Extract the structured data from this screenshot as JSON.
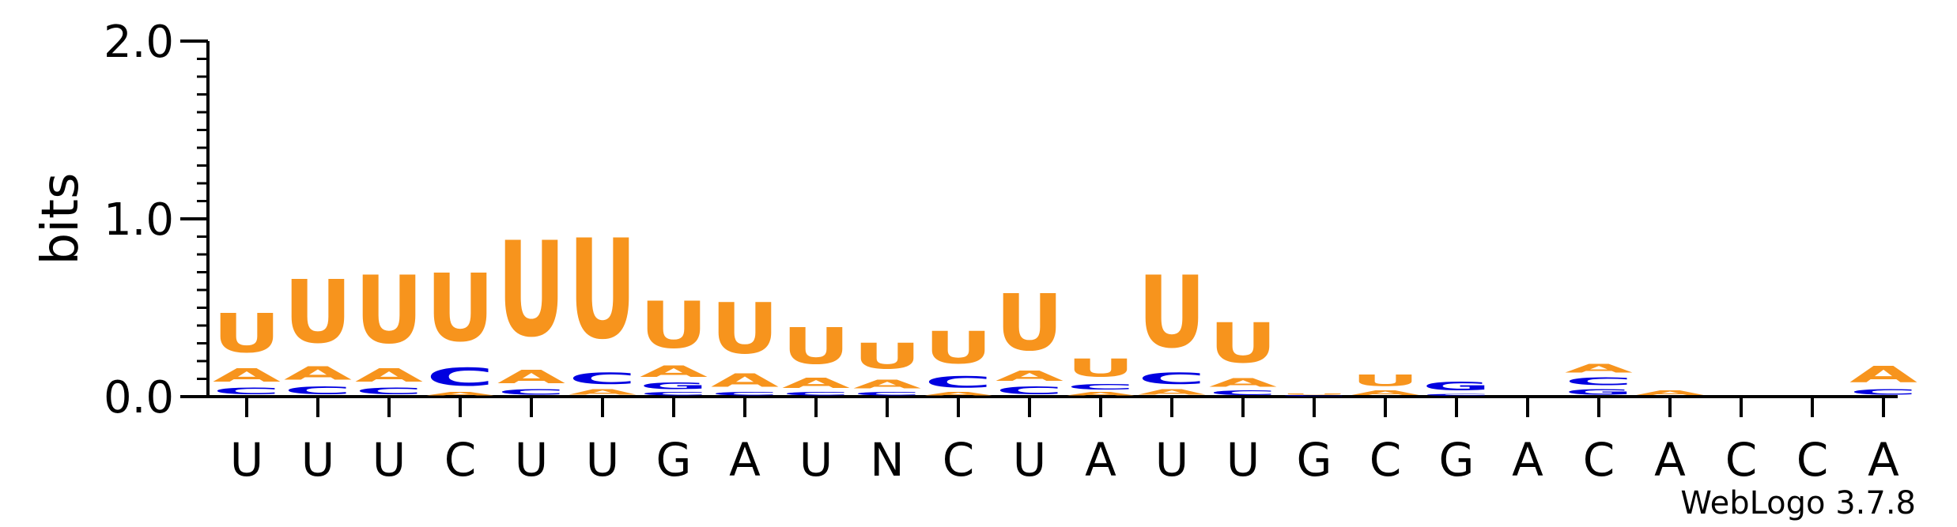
{
  "chart_data": {
    "type": "sequence-logo",
    "ylabel": "bits",
    "ylim": [
      0,
      2.0
    ],
    "yticks": [
      "0.0",
      "1.0",
      "2.0"
    ],
    "credit": "WebLogo 3.7.8",
    "colors": {
      "U": "#f7941d",
      "A": "#f7941d",
      "C": "#0000e0",
      "G": "#0000e0"
    },
    "positions": [
      {
        "label": "U",
        "stack": [
          [
            "C",
            0.06
          ],
          [
            "A",
            0.12
          ],
          [
            "U",
            0.35
          ]
        ]
      },
      {
        "label": "U",
        "stack": [
          [
            "C",
            0.07
          ],
          [
            "A",
            0.12
          ],
          [
            "U",
            0.57
          ]
        ]
      },
      {
        "label": "U",
        "stack": [
          [
            "C",
            0.06
          ],
          [
            "A",
            0.12
          ],
          [
            "U",
            0.61
          ]
        ]
      },
      {
        "label": "C",
        "stack": [
          [
            "A",
            0.03
          ],
          [
            "C",
            0.16
          ],
          [
            "U",
            0.61
          ]
        ]
      },
      {
        "label": "U",
        "stack": [
          [
            "C",
            0.05
          ],
          [
            "A",
            0.12
          ],
          [
            "U",
            0.86
          ]
        ]
      },
      {
        "label": "U",
        "stack": [
          [
            "A",
            0.05
          ],
          [
            "C",
            0.1
          ],
          [
            "U",
            0.9
          ]
        ]
      },
      {
        "label": "G",
        "stack": [
          [
            "C",
            0.03
          ],
          [
            "G",
            0.06
          ],
          [
            "A",
            0.1
          ],
          [
            "U",
            0.42
          ]
        ]
      },
      {
        "label": "A",
        "stack": [
          [
            "C",
            0.03
          ],
          [
            "A",
            0.12
          ],
          [
            "U",
            0.46
          ]
        ]
      },
      {
        "label": "U",
        "stack": [
          [
            "C",
            0.03
          ],
          [
            "A",
            0.09
          ],
          [
            "U",
            0.33
          ]
        ]
      },
      {
        "label": "N",
        "stack": [
          [
            "C",
            0.03
          ],
          [
            "A",
            0.08
          ],
          [
            "U",
            0.23
          ]
        ]
      },
      {
        "label": "C",
        "stack": [
          [
            "A",
            0.03
          ],
          [
            "C",
            0.1
          ],
          [
            "U",
            0.29
          ]
        ]
      },
      {
        "label": "U",
        "stack": [
          [
            "C",
            0.07
          ],
          [
            "A",
            0.09
          ],
          [
            "U",
            0.51
          ]
        ]
      },
      {
        "label": "A",
        "stack": [
          [
            "A",
            0.03
          ],
          [
            "C",
            0.05
          ],
          [
            "U",
            0.16
          ]
        ]
      },
      {
        "label": "U",
        "stack": [
          [
            "A",
            0.05
          ],
          [
            "C",
            0.1
          ],
          [
            "U",
            0.65
          ]
        ]
      },
      {
        "label": "U",
        "stack": [
          [
            "C",
            0.04
          ],
          [
            "A",
            0.08
          ],
          [
            "U",
            0.36
          ]
        ]
      },
      {
        "label": "G",
        "stack": [
          [
            "C",
            0.01
          ],
          [
            "U",
            0.01
          ]
        ]
      },
      {
        "label": "C",
        "stack": [
          [
            "A",
            0.04
          ],
          [
            "U",
            0.1
          ]
        ]
      },
      {
        "label": "G",
        "stack": [
          [
            "C",
            0.02
          ],
          [
            "G",
            0.08
          ]
        ]
      },
      {
        "label": "A",
        "stack": []
      },
      {
        "label": "C",
        "stack": [
          [
            "G",
            0.05
          ],
          [
            "C",
            0.07
          ],
          [
            "A",
            0.08
          ]
        ]
      },
      {
        "label": "A",
        "stack": [
          [
            "A",
            0.04
          ]
        ]
      },
      {
        "label": "C",
        "stack": []
      },
      {
        "label": "C",
        "stack": []
      },
      {
        "label": "A",
        "stack": [
          [
            "C",
            0.05
          ],
          [
            "A",
            0.15
          ]
        ]
      }
    ]
  }
}
